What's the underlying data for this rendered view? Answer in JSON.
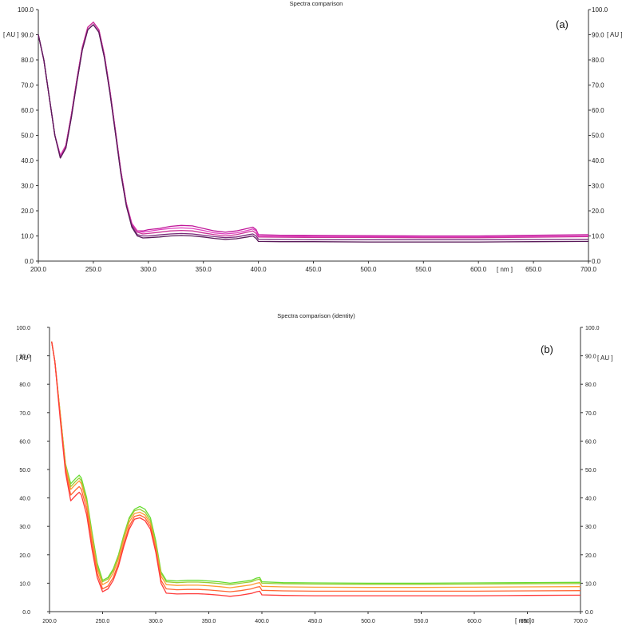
{
  "chart_data": [
    {
      "type": "line",
      "panel_label": "(a)",
      "title": "Spectra comparison",
      "unit_label": "[ AU ]",
      "x_unit_label": "[ nm ]",
      "xlim": [
        200,
        700
      ],
      "ylim": [
        0,
        100
      ],
      "x_ticks": [
        "200.0",
        "250.0",
        "300.0",
        "350.0",
        "400.0",
        "450.0",
        "500.0",
        "550.0",
        "600.0",
        "650.0",
        "700.0"
      ],
      "y_ticks": [
        "0.0",
        "10.0",
        "20.0",
        "30.0",
        "40.0",
        "50.0",
        "60.0",
        "70.0",
        "80.0",
        "90.0",
        "100.0"
      ],
      "grid": false,
      "colors": [
        "#c0189a",
        "#e040c0",
        "#cc3399",
        "#7a2a7a",
        "#5a1a5a"
      ],
      "series": [
        {
          "x": [
            200,
            205,
            210,
            215,
            220,
            225,
            230,
            235,
            240,
            245,
            250,
            255,
            260,
            265,
            270,
            275,
            280,
            285,
            290,
            295,
            300,
            310,
            320,
            330,
            340,
            350,
            360,
            370,
            380,
            390,
            395,
            398,
            400,
            420,
            450,
            500,
            550,
            600,
            650,
            700
          ],
          "values": [
            90,
            80,
            65,
            50,
            42,
            46,
            58,
            72,
            85,
            93,
            95,
            92,
            82,
            68,
            52,
            36,
            23,
            15,
            12,
            12,
            12.5,
            13,
            13.8,
            14.2,
            14,
            13,
            12,
            11.5,
            12,
            13,
            13.5,
            12.5,
            10.5,
            10.3,
            10.2,
            10.1,
            10,
            10,
            10.3,
            10.5
          ]
        },
        {
          "x": [
            200,
            205,
            210,
            215,
            220,
            225,
            230,
            235,
            240,
            245,
            250,
            255,
            260,
            265,
            270,
            275,
            280,
            285,
            290,
            295,
            300,
            310,
            320,
            330,
            340,
            350,
            360,
            370,
            380,
            390,
            395,
            398,
            400,
            420,
            450,
            500,
            550,
            600,
            650,
            700
          ],
          "values": [
            90,
            80,
            65,
            50,
            42,
            46,
            58,
            72,
            85,
            93,
            95,
            92,
            82,
            68,
            52,
            36,
            23,
            15,
            12,
            11.5,
            11.8,
            12.5,
            13,
            13.2,
            13,
            12.2,
            11.2,
            10.8,
            11.2,
            12.2,
            12.8,
            12,
            10,
            9.8,
            9.8,
            9.7,
            9.6,
            9.6,
            9.8,
            10
          ]
        },
        {
          "x": [
            200,
            205,
            210,
            215,
            220,
            225,
            230,
            235,
            240,
            245,
            250,
            255,
            260,
            265,
            270,
            275,
            280,
            285,
            290,
            295,
            300,
            310,
            320,
            330,
            340,
            350,
            360,
            370,
            380,
            390,
            395,
            398,
            400,
            420,
            450,
            500,
            550,
            600,
            650,
            700
          ],
          "values": [
            90,
            80,
            65,
            50,
            41,
            46,
            58,
            72,
            85,
            93,
            95,
            92,
            82,
            68,
            52,
            36,
            23,
            14.5,
            11.5,
            10.8,
            11,
            11.5,
            12,
            12.2,
            12,
            11.2,
            10.5,
            10,
            10.5,
            11.5,
            12,
            11,
            9.6,
            9.5,
            9.4,
            9.4,
            9.3,
            9.3,
            9.5,
            9.7
          ]
        },
        {
          "x": [
            200,
            205,
            210,
            215,
            220,
            225,
            230,
            235,
            240,
            245,
            250,
            255,
            260,
            265,
            270,
            275,
            280,
            285,
            290,
            295,
            300,
            310,
            320,
            330,
            340,
            350,
            360,
            370,
            380,
            390,
            395,
            398,
            400,
            420,
            450,
            500,
            550,
            600,
            650,
            700
          ],
          "values": [
            90,
            80,
            65,
            50,
            41,
            45,
            57,
            71,
            84,
            92,
            94,
            91,
            81,
            67,
            51,
            35,
            22,
            14,
            10.5,
            10,
            10,
            10.4,
            10.8,
            11,
            10.8,
            10.3,
            9.7,
            9.3,
            9.6,
            10.4,
            10.8,
            10,
            8.7,
            8.6,
            8.5,
            8.5,
            8.5,
            8.5,
            8.6,
            8.7
          ]
        },
        {
          "x": [
            200,
            205,
            210,
            215,
            220,
            225,
            230,
            235,
            240,
            245,
            250,
            255,
            260,
            265,
            270,
            275,
            280,
            285,
            290,
            295,
            300,
            310,
            320,
            330,
            340,
            350,
            360,
            370,
            380,
            390,
            395,
            398,
            400,
            420,
            450,
            500,
            550,
            600,
            650,
            700
          ],
          "values": [
            90,
            80,
            65,
            50,
            41,
            45,
            57,
            71,
            84,
            92,
            94,
            91,
            81,
            67,
            51,
            35,
            22,
            13.5,
            10,
            9.2,
            9.3,
            9.6,
            10,
            10.2,
            10,
            9.6,
            9,
            8.6,
            8.9,
            9.6,
            10,
            9,
            7.8,
            7.7,
            7.7,
            7.6,
            7.6,
            7.6,
            7.7,
            7.8
          ]
        }
      ]
    },
    {
      "type": "line",
      "panel_label": "(b)",
      "title": "Spectra comparison (identity)",
      "unit_label": "[ AU ]",
      "x_unit_label": "[ nm ]",
      "xlim": [
        200,
        700
      ],
      "ylim": [
        0,
        100
      ],
      "x_ticks": [
        "200.0",
        "250.0",
        "300.0",
        "350.0",
        "400.0",
        "450.0",
        "500.0",
        "550.0",
        "600.0",
        "650.0",
        "700.0"
      ],
      "y_ticks": [
        "0.0",
        "10.0",
        "20.0",
        "30.0",
        "40.0",
        "50.0",
        "60.0",
        "70.0",
        "80.0",
        "90.0",
        "100.0"
      ],
      "grid": false,
      "colors": [
        "#66dd33",
        "#99cc33",
        "#ff9933",
        "#ff6633",
        "#ff3b3b"
      ],
      "series": [
        {
          "x": [
            202,
            205,
            210,
            215,
            220,
            225,
            228,
            230,
            235,
            240,
            245,
            250,
            255,
            260,
            265,
            270,
            275,
            280,
            285,
            290,
            295,
            300,
            305,
            310,
            320,
            330,
            340,
            350,
            360,
            370,
            380,
            390,
            395,
            398,
            400,
            420,
            450,
            500,
            550,
            600,
            650,
            700
          ],
          "values": [
            95,
            88,
            70,
            52,
            45,
            47,
            48,
            47,
            40,
            28,
            17,
            11,
            12,
            15,
            20,
            27,
            33,
            36,
            37,
            36,
            33,
            25,
            14,
            11,
            10.8,
            11,
            11,
            10.8,
            10.5,
            10,
            10.5,
            11,
            11.8,
            12,
            10.5,
            10.2,
            10.1,
            10,
            10,
            10.1,
            10.2,
            10.3
          ]
        },
        {
          "x": [
            202,
            205,
            210,
            215,
            220,
            225,
            228,
            230,
            235,
            240,
            245,
            250,
            255,
            260,
            265,
            270,
            275,
            280,
            285,
            290,
            295,
            300,
            305,
            310,
            320,
            330,
            340,
            350,
            360,
            370,
            380,
            390,
            395,
            398,
            400,
            420,
            450,
            500,
            550,
            600,
            650,
            700
          ],
          "values": [
            95,
            88,
            70,
            52,
            44,
            46,
            47,
            46,
            39,
            27,
            16,
            10.5,
            11.5,
            14.5,
            19.5,
            26.5,
            32.5,
            35.5,
            36,
            35,
            32,
            24,
            13.5,
            10.5,
            10.2,
            10.4,
            10.4,
            10.2,
            9.9,
            9.5,
            10,
            10.5,
            11.2,
            11.4,
            10,
            9.8,
            9.7,
            9.6,
            9.6,
            9.7,
            9.8,
            9.9
          ]
        },
        {
          "x": [
            202,
            205,
            210,
            215,
            220,
            225,
            228,
            230,
            235,
            240,
            245,
            250,
            255,
            260,
            265,
            270,
            275,
            280,
            285,
            290,
            295,
            300,
            305,
            310,
            320,
            330,
            340,
            350,
            360,
            370,
            380,
            390,
            395,
            398,
            400,
            420,
            450,
            500,
            550,
            600,
            650,
            700
          ],
          "values": [
            95,
            88,
            70,
            51,
            43,
            45,
            46,
            45,
            38,
            26,
            15,
            9.5,
            10.5,
            13.5,
            18.5,
            25.5,
            31.5,
            34.5,
            35,
            34,
            31,
            23,
            12.5,
            9.5,
            9.2,
            9.3,
            9.3,
            9.1,
            8.8,
            8.4,
            8.9,
            9.4,
            10,
            10.2,
            8.9,
            8.7,
            8.6,
            8.5,
            8.5,
            8.6,
            8.7,
            8.8
          ]
        },
        {
          "x": [
            202,
            205,
            210,
            215,
            220,
            225,
            228,
            230,
            235,
            240,
            245,
            250,
            255,
            260,
            265,
            270,
            275,
            280,
            285,
            290,
            295,
            300,
            305,
            310,
            320,
            330,
            340,
            350,
            360,
            370,
            380,
            390,
            395,
            398,
            400,
            420,
            450,
            500,
            550,
            600,
            650,
            700
          ],
          "values": [
            95,
            88,
            69,
            50,
            41,
            43,
            44,
            43,
            36,
            24,
            13.5,
            8,
            9,
            12,
            17,
            24,
            30,
            33.5,
            34,
            33,
            30,
            22,
            11,
            8,
            7.7,
            7.8,
            7.8,
            7.6,
            7.3,
            7,
            7.4,
            8,
            8.6,
            8.8,
            7.5,
            7.3,
            7.2,
            7.2,
            7.2,
            7.2,
            7.3,
            7.4
          ]
        },
        {
          "x": [
            202,
            205,
            210,
            215,
            220,
            225,
            228,
            230,
            235,
            240,
            245,
            250,
            255,
            260,
            265,
            270,
            275,
            280,
            285,
            290,
            295,
            300,
            305,
            310,
            320,
            330,
            340,
            350,
            360,
            370,
            380,
            390,
            395,
            398,
            400,
            420,
            450,
            500,
            550,
            600,
            650,
            700
          ],
          "values": [
            95,
            88,
            68,
            49,
            39,
            41,
            42,
            41,
            34,
            22,
            12,
            7,
            8,
            11,
            16,
            23,
            29,
            32.5,
            33,
            32,
            29,
            21,
            10,
            6.5,
            6.2,
            6.3,
            6.3,
            6.1,
            5.8,
            5.4,
            5.8,
            6.4,
            7,
            7.2,
            5.9,
            5.7,
            5.6,
            5.6,
            5.6,
            5.6,
            5.7,
            5.8
          ]
        }
      ]
    }
  ]
}
